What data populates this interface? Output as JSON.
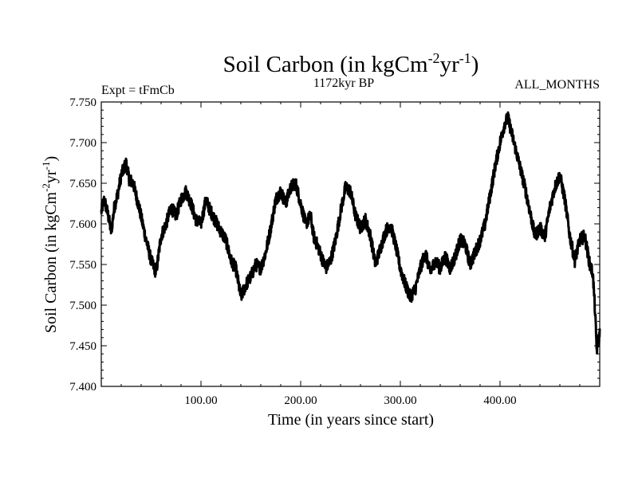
{
  "chart_data": {
    "type": "line",
    "title": {
      "main": "Soil Carbon (in kgCm",
      "sup1": "-2",
      "mid": "yr",
      "sup2": "-1",
      "end": ")"
    },
    "subtitle_left": "Expt = tFmCb",
    "subtitle_center": "1172kyr BP",
    "subtitle_right": "ALL_MONTHS",
    "xlabel": "Time (in years since start)",
    "ylabel": {
      "main": "Soil Carbon (in kgCm",
      "sup1": "-2",
      "mid": "yr",
      "sup2": "-1",
      "end": ")"
    },
    "xlim": [
      0,
      500
    ],
    "ylim": [
      7.4,
      7.75
    ],
    "xticks": [
      {
        "value": 100,
        "label": "100.00"
      },
      {
        "value": 200,
        "label": "200.00"
      },
      {
        "value": 300,
        "label": "300.00"
      },
      {
        "value": 400,
        "label": "400.00"
      }
    ],
    "yticks": [
      {
        "value": 7.4,
        "label": "7.400"
      },
      {
        "value": 7.45,
        "label": "7.450"
      },
      {
        "value": 7.5,
        "label": "7.500"
      },
      {
        "value": 7.55,
        "label": "7.550"
      },
      {
        "value": 7.6,
        "label": "7.600"
      },
      {
        "value": 7.65,
        "label": "7.650"
      },
      {
        "value": 7.7,
        "label": "7.700"
      },
      {
        "value": 7.75,
        "label": "7.750"
      }
    ],
    "series": [
      {
        "name": "Soil Carbon",
        "color": "#000000",
        "x": [
          0,
          3,
          7,
          10,
          13,
          17,
          20,
          25,
          28,
          32,
          38,
          45,
          50,
          55,
          60,
          65,
          70,
          75,
          80,
          85,
          90,
          95,
          100,
          105,
          108,
          112,
          118,
          125,
          130,
          135,
          140,
          145,
          150,
          155,
          160,
          165,
          170,
          175,
          180,
          185,
          190,
          195,
          200,
          205,
          210,
          213,
          218,
          225,
          230,
          235,
          240,
          245,
          250,
          255,
          260,
          265,
          270,
          275,
          280,
          285,
          290,
          295,
          300,
          305,
          310,
          315,
          320,
          325,
          330,
          335,
          340,
          345,
          350,
          355,
          360,
          365,
          370,
          375,
          380,
          385,
          390,
          395,
          400,
          405,
          408,
          412,
          418,
          425,
          430,
          435,
          440,
          445,
          450,
          455,
          460,
          465,
          470,
          475,
          480,
          485,
          490,
          493,
          495,
          497,
          500
        ],
        "values": [
          7.615,
          7.63,
          7.61,
          7.59,
          7.62,
          7.64,
          7.66,
          7.675,
          7.655,
          7.65,
          7.62,
          7.58,
          7.555,
          7.54,
          7.585,
          7.6,
          7.62,
          7.61,
          7.63,
          7.64,
          7.625,
          7.605,
          7.6,
          7.63,
          7.62,
          7.61,
          7.595,
          7.58,
          7.555,
          7.545,
          7.51,
          7.525,
          7.535,
          7.55,
          7.545,
          7.565,
          7.595,
          7.63,
          7.64,
          7.625,
          7.645,
          7.65,
          7.625,
          7.6,
          7.61,
          7.585,
          7.57,
          7.545,
          7.555,
          7.58,
          7.615,
          7.645,
          7.64,
          7.61,
          7.595,
          7.605,
          7.585,
          7.55,
          7.57,
          7.59,
          7.6,
          7.575,
          7.545,
          7.525,
          7.51,
          7.52,
          7.545,
          7.565,
          7.54,
          7.555,
          7.545,
          7.56,
          7.545,
          7.56,
          7.58,
          7.575,
          7.55,
          7.565,
          7.58,
          7.6,
          7.635,
          7.67,
          7.7,
          7.725,
          7.73,
          7.71,
          7.68,
          7.645,
          7.615,
          7.585,
          7.595,
          7.585,
          7.62,
          7.645,
          7.66,
          7.63,
          7.585,
          7.555,
          7.58,
          7.585,
          7.55,
          7.54,
          7.5,
          7.445,
          7.465
        ]
      }
    ]
  }
}
